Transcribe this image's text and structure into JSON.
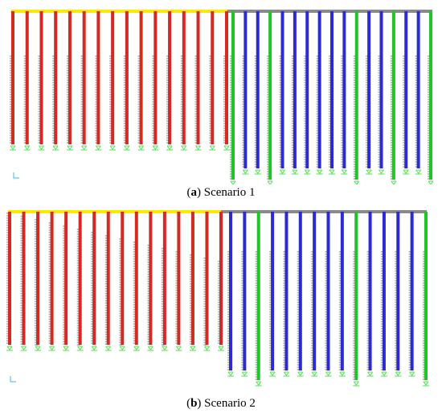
{
  "captions": {
    "a": {
      "letter": "a",
      "text": "Scenario 1"
    },
    "b": {
      "letter": "b",
      "text": "Scenario 2"
    }
  },
  "colors": {
    "deck_left": "#ffe800",
    "deck_right": "#8a8a8a",
    "pile_red": "#d42a22",
    "pile_blue": "#2a2bd4",
    "pile_green": "#22c22a",
    "springs": "#555555",
    "supports": "#55dd55",
    "axis_triad": "#33bbee"
  },
  "panels": {
    "a": {
      "red_piles": 16,
      "blue_green_pattern": [
        "G",
        "B",
        "B",
        "G",
        "B",
        "B",
        "B",
        "B",
        "B",
        "B",
        "G",
        "B",
        "B",
        "G",
        "B",
        "B",
        "G"
      ]
    },
    "b": {
      "red_piles": 16,
      "blue_green_pattern": [
        "B",
        "B",
        "G",
        "B",
        "B",
        "B",
        "B",
        "B",
        "B",
        "G",
        "B",
        "B",
        "B",
        "B",
        "G"
      ]
    }
  }
}
